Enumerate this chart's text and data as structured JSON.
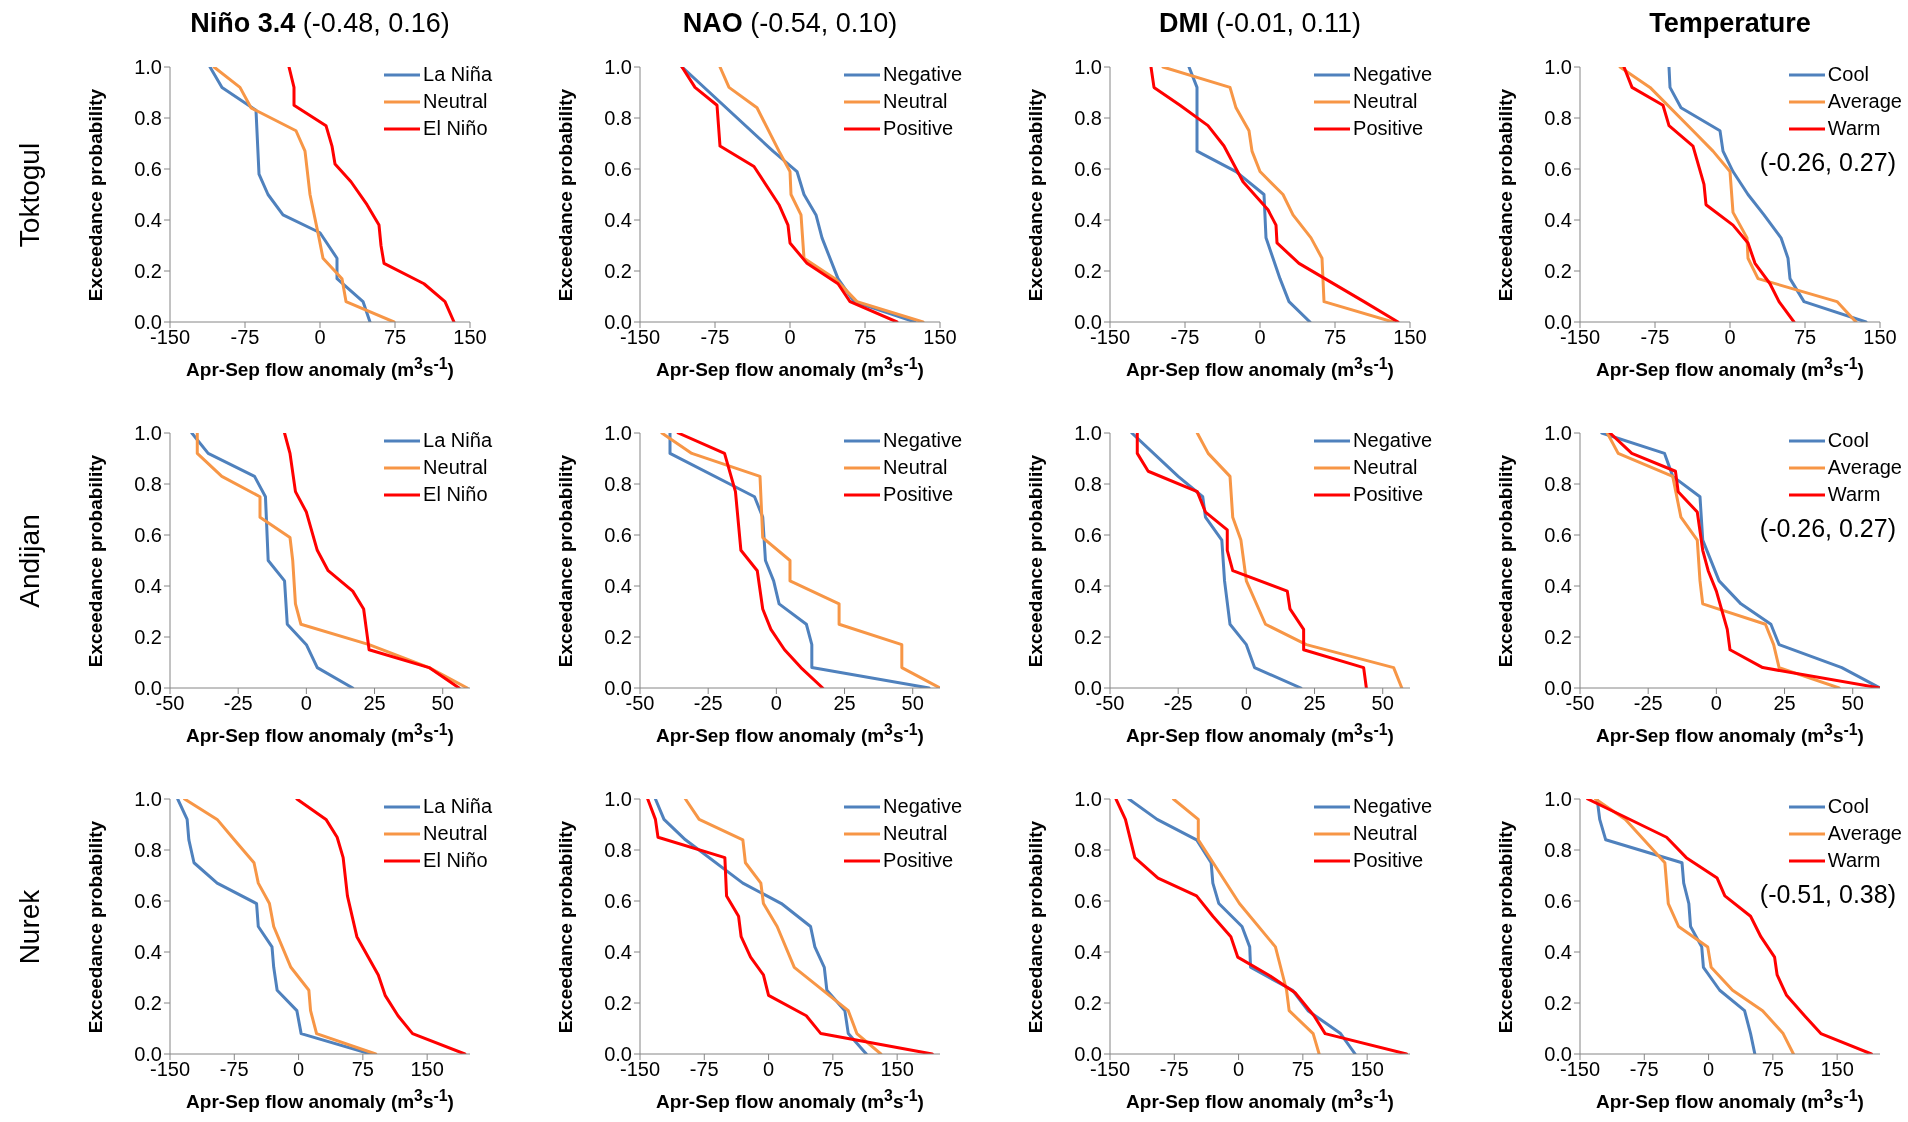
{
  "chart_data": [
    {
      "type": "line",
      "title": "Niño 3.4",
      "subtitle": "(-0.48, 0.16)",
      "xlabel": "Apr-Sep flow anomaly (m$^{3}$s$^{-1}$)",
      "ylabel": "Exceedance probability",
      "annotations": [
        "Toktogul"
      ],
      "xlim": [
        -150,
        150
      ],
      "xticks": [
        -150,
        -75,
        0,
        75,
        150
      ],
      "ylim": [
        0,
        1
      ],
      "yticks": [
        {
          "value": 0,
          "label": "0.0"
        },
        {
          "value": 0.2,
          "label": "0.2"
        },
        {
          "value": 0.4,
          "label": "0.4"
        },
        {
          "value": 0.6,
          "label": "0.6"
        },
        {
          "value": 0.8,
          "label": "0.8"
        },
        {
          "value": 1,
          "label": "1.0"
        }
      ],
      "legend": "top right",
      "marker": "none",
      "line_style": "solid",
      "series": [
        {
          "name": "La Niña",
          "color": "#4f81bd",
          "x": [
            -110,
            -98,
            -64,
            -61,
            -52,
            -37,
            0,
            17,
            17,
            43,
            50
          ],
          "values": [
            1,
            0.92,
            0.83,
            0.58,
            0.5,
            0.42,
            0.35,
            0.25,
            0.17,
            0.08,
            0
          ]
        },
        {
          "name": "Neutral",
          "color": "#f79646",
          "x": [
            -106,
            -80,
            -69,
            -24,
            -15,
            -10,
            -1,
            3,
            22,
            26,
            74
          ],
          "values": [
            1,
            0.92,
            0.84,
            0.75,
            0.67,
            0.5,
            0.33,
            0.25,
            0.17,
            0.08,
            0
          ]
        },
        {
          "name": "El Niño",
          "color": "#ff0000",
          "x": [
            -31,
            -26,
            -26,
            6,
            12,
            15,
            31,
            47,
            59,
            61,
            64,
            104,
            125,
            134
          ],
          "values": [
            1,
            0.92,
            0.85,
            0.77,
            0.69,
            0.62,
            0.55,
            0.46,
            0.38,
            0.3,
            0.23,
            0.15,
            0.08,
            0
          ]
        }
      ]
    },
    {
      "type": "line",
      "title": "NAO",
      "subtitle": "(-0.54, 0.10)",
      "xlabel": "Apr-Sep flow anomaly (m$^{3}$s$^{-1}$)",
      "ylabel": "Exceedance probability",
      "xlim": [
        -150,
        150
      ],
      "xticks": [
        -150,
        -75,
        0,
        75,
        150
      ],
      "ylim": [
        0,
        1
      ],
      "yticks": [
        {
          "value": 0,
          "label": "0.0"
        },
        {
          "value": 0.2,
          "label": "0.2"
        },
        {
          "value": 0.4,
          "label": "0.4"
        },
        {
          "value": 0.6,
          "label": "0.6"
        },
        {
          "value": 0.8,
          "label": "0.8"
        },
        {
          "value": 1,
          "label": "1.0"
        }
      ],
      "legend": "top right",
      "marker": "none",
      "line_style": "solid",
      "series": [
        {
          "name": "Negative",
          "color": "#4f81bd",
          "x": [
            -108,
            -17,
            7,
            14,
            26,
            32,
            48,
            64,
            125
          ],
          "values": [
            1,
            0.67,
            0.59,
            0.5,
            0.42,
            0.33,
            0.17,
            0.08,
            0
          ]
        },
        {
          "name": "Neutral",
          "color": "#f79646",
          "x": [
            -70,
            -61,
            -33,
            -11,
            0,
            1,
            11,
            14,
            45,
            67,
            133
          ],
          "values": [
            1,
            0.92,
            0.84,
            0.67,
            0.59,
            0.5,
            0.42,
            0.25,
            0.17,
            0.08,
            0
          ]
        },
        {
          "name": "Positive",
          "color": "#ff0000",
          "x": [
            -108,
            -95,
            -73,
            -70,
            -36,
            -11,
            -2,
            0,
            17,
            48,
            60,
            107
          ],
          "values": [
            1,
            0.92,
            0.85,
            0.69,
            0.61,
            0.46,
            0.38,
            0.31,
            0.23,
            0.15,
            0.08,
            0
          ]
        }
      ]
    },
    {
      "type": "line",
      "title": "DMI",
      "subtitle": "(-0.01, 0.11)",
      "xlabel": "Apr-Sep flow anomaly (m$^{3}$s$^{-1}$)",
      "ylabel": "Exceedance probability",
      "xlim": [
        -150,
        150
      ],
      "xticks": [
        -150,
        -75,
        0,
        75,
        150
      ],
      "ylim": [
        0,
        1
      ],
      "yticks": [
        {
          "value": 0,
          "label": "0.0"
        },
        {
          "value": 0.2,
          "label": "0.2"
        },
        {
          "value": 0.4,
          "label": "0.4"
        },
        {
          "value": 0.6,
          "label": "0.6"
        },
        {
          "value": 0.8,
          "label": "0.8"
        },
        {
          "value": 1,
          "label": "1.0"
        }
      ],
      "legend": "top right",
      "marker": "none",
      "line_style": "solid",
      "series": [
        {
          "name": "Negative",
          "color": "#4f81bd",
          "x": [
            -71,
            -63,
            -63,
            -24,
            4,
            6,
            13,
            20,
            29,
            50
          ],
          "values": [
            1,
            0.92,
            0.67,
            0.59,
            0.5,
            0.33,
            0.25,
            0.17,
            0.08,
            0
          ]
        },
        {
          "name": "Neutral",
          "color": "#f79646",
          "x": [
            -97,
            -30,
            -24,
            -11,
            -8,
            0,
            23,
            33,
            51,
            62,
            64,
            133
          ],
          "values": [
            1,
            0.92,
            0.84,
            0.75,
            0.67,
            0.59,
            0.5,
            0.42,
            0.33,
            0.25,
            0.08,
            0
          ]
        },
        {
          "name": "Positive",
          "color": "#ff0000",
          "x": [
            -109,
            -106,
            -80,
            -52,
            -36,
            -17,
            8,
            16,
            17,
            39,
            104,
            138
          ],
          "values": [
            1,
            0.92,
            0.85,
            0.77,
            0.69,
            0.55,
            0.44,
            0.38,
            0.31,
            0.23,
            0.08,
            0
          ]
        }
      ]
    },
    {
      "type": "line",
      "title": "Temperature",
      "xlabel": "Apr-Sep flow anomaly (m$^{3}$s$^{-1}$)",
      "ylabel": "Exceedance probability",
      "annotations": [
        "(-0.26, 0.27)"
      ],
      "xlim": [
        -150,
        150
      ],
      "xticks": [
        -150,
        -75,
        0,
        75,
        150
      ],
      "ylim": [
        0,
        1
      ],
      "yticks": [
        {
          "value": 0,
          "label": "0.0"
        },
        {
          "value": 0.2,
          "label": "0.2"
        },
        {
          "value": 0.4,
          "label": "0.4"
        },
        {
          "value": 0.6,
          "label": "0.6"
        },
        {
          "value": 0.8,
          "label": "0.8"
        },
        {
          "value": 1,
          "label": "1.0"
        }
      ],
      "legend": "top right",
      "marker": "none",
      "line_style": "solid",
      "series": [
        {
          "name": "Cool",
          "color": "#4f81bd",
          "x": [
            -61,
            -60,
            -49,
            -10,
            -7,
            3,
            18,
            34,
            51,
            58,
            60,
            74,
            136
          ],
          "values": [
            1,
            0.92,
            0.84,
            0.75,
            0.67,
            0.59,
            0.5,
            0.42,
            0.33,
            0.25,
            0.17,
            0.08,
            0
          ]
        },
        {
          "name": "Average",
          "color": "#f79646",
          "x": [
            -110,
            -80,
            -37,
            -17,
            0,
            3,
            17,
            18,
            28,
            107,
            126
          ],
          "values": [
            1,
            0.92,
            0.75,
            0.67,
            0.59,
            0.43,
            0.33,
            0.25,
            0.17,
            0.08,
            0
          ]
        },
        {
          "name": "Warm",
          "color": "#ff0000",
          "x": [
            -106,
            -98,
            -67,
            -61,
            -37,
            -26,
            -24,
            3,
            18,
            25,
            40,
            49,
            64
          ],
          "values": [
            1,
            0.92,
            0.85,
            0.77,
            0.69,
            0.54,
            0.46,
            0.38,
            0.31,
            0.23,
            0.15,
            0.08,
            0
          ]
        }
      ]
    },
    {
      "type": "line",
      "xlabel": "Apr-Sep flow anomaly (m$^{3}$s$^{-1}$)",
      "ylabel": "Exceedance probability",
      "annotations": [
        "Andijan"
      ],
      "xlim": [
        -50,
        60
      ],
      "xticks": [
        -50,
        -25,
        0,
        25,
        50
      ],
      "ylim": [
        0,
        1
      ],
      "yticks": [
        {
          "value": 0,
          "label": "0.0"
        },
        {
          "value": 0.2,
          "label": "0.2"
        },
        {
          "value": 0.4,
          "label": "0.4"
        },
        {
          "value": 0.6,
          "label": "0.6"
        },
        {
          "value": 0.8,
          "label": "0.8"
        },
        {
          "value": 1,
          "label": "1.0"
        }
      ],
      "legend": "top right",
      "marker": "none",
      "line_style": "solid",
      "series": [
        {
          "name": "La Niña",
          "color": "#4f81bd",
          "x": [
            -42,
            -36,
            -19,
            -15,
            -14,
            -8,
            -7,
            0,
            4,
            17
          ],
          "values": [
            1,
            0.92,
            0.83,
            0.75,
            0.5,
            0.42,
            0.25,
            0.17,
            0.08,
            0
          ]
        },
        {
          "name": "Neutral",
          "color": "#f79646",
          "x": [
            -40,
            -40,
            -31,
            -17,
            -17,
            -6,
            -5,
            -4,
            -2,
            23,
            45,
            59
          ],
          "values": [
            1,
            0.92,
            0.83,
            0.75,
            0.67,
            0.59,
            0.5,
            0.33,
            0.25,
            0.17,
            0.08,
            0
          ]
        },
        {
          "name": "El Niño",
          "color": "#ff0000",
          "x": [
            -8,
            -6,
            -4,
            0,
            4,
            8,
            17,
            21,
            22,
            23,
            45,
            56
          ],
          "values": [
            1,
            0.92,
            0.77,
            0.69,
            0.54,
            0.46,
            0.38,
            0.31,
            0.23,
            0.15,
            0.08,
            0
          ]
        }
      ]
    },
    {
      "type": "line",
      "xlabel": "Apr-Sep flow anomaly (m$^{3}$s$^{-1}$)",
      "ylabel": "Exceedance probability",
      "xlim": [
        -50,
        60
      ],
      "xticks": [
        -50,
        -25,
        0,
        25,
        50
      ],
      "ylim": [
        0,
        1
      ],
      "yticks": [
        {
          "value": 0,
          "label": "0.0"
        },
        {
          "value": 0.2,
          "label": "0.2"
        },
        {
          "value": 0.4,
          "label": "0.4"
        },
        {
          "value": 0.6,
          "label": "0.6"
        },
        {
          "value": 0.8,
          "label": "0.8"
        },
        {
          "value": 1,
          "label": "1.0"
        }
      ],
      "legend": "top right",
      "marker": "none",
      "line_style": "solid",
      "series": [
        {
          "name": "Negative",
          "color": "#4f81bd",
          "x": [
            -39,
            -39,
            -8,
            -5,
            -4,
            -1,
            1,
            11,
            13,
            13,
            56
          ],
          "values": [
            1,
            0.92,
            0.75,
            0.67,
            0.5,
            0.42,
            0.33,
            0.25,
            0.17,
            0.08,
            0
          ]
        },
        {
          "name": "Neutral",
          "color": "#f79646",
          "x": [
            -42,
            -31,
            -6,
            -5,
            5,
            5,
            23,
            23,
            46,
            46,
            60
          ],
          "values": [
            1,
            0.92,
            0.83,
            0.59,
            0.5,
            0.42,
            0.33,
            0.25,
            0.17,
            0.08,
            0
          ]
        },
        {
          "name": "Positive",
          "color": "#ff0000",
          "x": [
            -36,
            -19,
            -15,
            -13,
            -7,
            -5,
            -2,
            3,
            9,
            17
          ],
          "values": [
            1,
            0.92,
            0.77,
            0.54,
            0.46,
            0.31,
            0.23,
            0.15,
            0.08,
            0
          ]
        }
      ]
    },
    {
      "type": "line",
      "xlabel": "Apr-Sep flow anomaly (m$^{3}$s$^{-1}$)",
      "ylabel": "Exceedance probability",
      "xlim": [
        -50,
        60
      ],
      "xticks": [
        -50,
        -25,
        0,
        25,
        50
      ],
      "ylim": [
        0,
        1
      ],
      "yticks": [
        {
          "value": 0,
          "label": "0.0"
        },
        {
          "value": 0.2,
          "label": "0.2"
        },
        {
          "value": 0.4,
          "label": "0.4"
        },
        {
          "value": 0.6,
          "label": "0.6"
        },
        {
          "value": 0.8,
          "label": "0.8"
        },
        {
          "value": 1,
          "label": "1.0"
        }
      ],
      "legend": "top right",
      "marker": "none",
      "line_style": "solid",
      "series": [
        {
          "name": "Negative",
          "color": "#4f81bd",
          "x": [
            -42,
            -25,
            -16,
            -15,
            -9,
            -8,
            -6,
            0,
            3,
            20
          ],
          "values": [
            1,
            0.83,
            0.75,
            0.67,
            0.58,
            0.42,
            0.25,
            0.17,
            0.08,
            0
          ]
        },
        {
          "name": "Neutral",
          "color": "#f79646",
          "x": [
            -18,
            -14,
            -6,
            -5,
            -2,
            -1,
            0,
            7,
            22,
            54,
            57
          ],
          "values": [
            1,
            0.92,
            0.83,
            0.67,
            0.58,
            0.5,
            0.42,
            0.25,
            0.17,
            0.08,
            0
          ]
        },
        {
          "name": "Positive",
          "color": "#ff0000",
          "x": [
            -40,
            -40,
            -36,
            -18,
            -15,
            -7,
            -7,
            -5,
            15,
            16,
            21,
            21,
            43,
            44
          ],
          "values": [
            1,
            0.92,
            0.85,
            0.77,
            0.69,
            0.62,
            0.54,
            0.46,
            0.38,
            0.31,
            0.23,
            0.15,
            0.08,
            0
          ]
        }
      ]
    },
    {
      "type": "line",
      "xlabel": "Apr-Sep flow anomaly (m$^{3}$s$^{-1}$)",
      "ylabel": "Exceedance probability",
      "annotations": [
        "(-0.26, 0.27)"
      ],
      "xlim": [
        -50,
        60
      ],
      "xticks": [
        -50,
        -25,
        0,
        25,
        50
      ],
      "ylim": [
        0,
        1
      ],
      "yticks": [
        {
          "value": 0,
          "label": "0.0"
        },
        {
          "value": 0.2,
          "label": "0.2"
        },
        {
          "value": 0.4,
          "label": "0.4"
        },
        {
          "value": 0.6,
          "label": "0.6"
        },
        {
          "value": 0.8,
          "label": "0.8"
        },
        {
          "value": 1,
          "label": "1.0"
        }
      ],
      "legend": "top right",
      "marker": "none",
      "line_style": "solid",
      "series": [
        {
          "name": "Cool",
          "color": "#4f81bd",
          "x": [
            -42,
            -19,
            -16,
            -6,
            -5,
            1,
            9,
            20,
            23,
            46,
            60
          ],
          "values": [
            1,
            0.92,
            0.83,
            0.75,
            0.58,
            0.42,
            0.33,
            0.25,
            0.17,
            0.08,
            0
          ]
        },
        {
          "name": "Average",
          "color": "#f79646",
          "x": [
            -40,
            -36,
            -16,
            -13,
            -7,
            -6,
            -5,
            18,
            21,
            23,
            45
          ],
          "values": [
            1,
            0.92,
            0.83,
            0.67,
            0.58,
            0.42,
            0.33,
            0.25,
            0.17,
            0.08,
            0
          ]
        },
        {
          "name": "Warm",
          "color": "#ff0000",
          "x": [
            -39,
            -31,
            -15,
            -14,
            -7,
            -5,
            -3,
            0,
            4,
            5,
            17,
            60
          ],
          "values": [
            1,
            0.92,
            0.85,
            0.77,
            0.69,
            0.54,
            0.46,
            0.38,
            0.23,
            0.15,
            0.08,
            0
          ]
        }
      ]
    },
    {
      "type": "line",
      "xlabel": "Apr-Sep flow anomaly (m$^{3}$s$^{-1}$)",
      "ylabel": "Exceedance probability",
      "annotations": [
        "Nurek"
      ],
      "xlim": [
        -150,
        200
      ],
      "xticks": [
        -150,
        -75,
        0,
        75,
        150
      ],
      "ylim": [
        0,
        1
      ],
      "yticks": [
        {
          "value": 0,
          "label": "0.0"
        },
        {
          "value": 0.2,
          "label": "0.2"
        },
        {
          "value": 0.4,
          "label": "0.4"
        },
        {
          "value": 0.6,
          "label": "0.6"
        },
        {
          "value": 0.8,
          "label": "0.8"
        },
        {
          "value": 1,
          "label": "1.0"
        }
      ],
      "legend": "top right",
      "marker": "none",
      "line_style": "solid",
      "series": [
        {
          "name": "La Niña",
          "color": "#4f81bd",
          "x": [
            -141,
            -130,
            -128,
            -122,
            -95,
            -49,
            -47,
            -31,
            -29,
            -25,
            -2,
            3,
            84
          ],
          "values": [
            1,
            0.92,
            0.84,
            0.75,
            0.67,
            0.59,
            0.5,
            0.42,
            0.34,
            0.25,
            0.17,
            0.08,
            0
          ]
        },
        {
          "name": "Neutral",
          "color": "#f79646",
          "x": [
            -133,
            -95,
            -75,
            -52,
            -47,
            -34,
            -29,
            -9,
            12,
            14,
            21,
            90
          ],
          "values": [
            1,
            0.92,
            0.84,
            0.75,
            0.67,
            0.59,
            0.5,
            0.34,
            0.25,
            0.17,
            0.08,
            0
          ]
        },
        {
          "name": "El Niño",
          "color": "#ff0000",
          "x": [
            -2,
            32,
            45,
            52,
            57,
            68,
            93,
            101,
            116,
            133,
            194
          ],
          "values": [
            1,
            0.92,
            0.85,
            0.77,
            0.62,
            0.46,
            0.31,
            0.23,
            0.15,
            0.08,
            0
          ]
        }
      ]
    },
    {
      "type": "line",
      "xlabel": "Apr-Sep flow anomaly (m$^{3}$s$^{-1}$)",
      "ylabel": "Exceedance probability",
      "xlim": [
        -150,
        200
      ],
      "xticks": [
        -150,
        -75,
        0,
        75,
        150
      ],
      "ylim": [
        0,
        1
      ],
      "yticks": [
        {
          "value": 0,
          "label": "0.0"
        },
        {
          "value": 0.2,
          "label": "0.2"
        },
        {
          "value": 0.4,
          "label": "0.4"
        },
        {
          "value": 0.6,
          "label": "0.6"
        },
        {
          "value": 0.8,
          "label": "0.8"
        },
        {
          "value": 1,
          "label": "1.0"
        }
      ],
      "legend": "top right",
      "marker": "none",
      "line_style": "solid",
      "series": [
        {
          "name": "Negative",
          "color": "#4f81bd",
          "x": [
            -132,
            -122,
            -97,
            -30,
            15,
            49,
            54,
            65,
            68,
            89,
            93,
            114
          ],
          "values": [
            1,
            0.92,
            0.84,
            0.67,
            0.59,
            0.5,
            0.42,
            0.34,
            0.25,
            0.17,
            0.08,
            0
          ]
        },
        {
          "name": "Neutral",
          "color": "#f79646",
          "x": [
            -97,
            -81,
            -30,
            -27,
            -9,
            -6,
            10,
            30,
            93,
            103,
            131
          ],
          "values": [
            1,
            0.92,
            0.84,
            0.75,
            0.67,
            0.59,
            0.5,
            0.34,
            0.17,
            0.08,
            0
          ]
        },
        {
          "name": "Positive",
          "color": "#ff0000",
          "x": [
            -141,
            -132,
            -129,
            -51,
            -49,
            -35,
            -32,
            -21,
            -6,
            0,
            44,
            61,
            191
          ],
          "values": [
            1,
            0.92,
            0.85,
            0.77,
            0.62,
            0.54,
            0.46,
            0.38,
            0.31,
            0.23,
            0.15,
            0.08,
            0
          ]
        }
      ]
    },
    {
      "type": "line",
      "xlabel": "Apr-Sep flow anomaly (m$^{3}$s$^{-1}$)",
      "ylabel": "Exceedance probability",
      "xlim": [
        -150,
        200
      ],
      "xticks": [
        -150,
        -75,
        0,
        75,
        150
      ],
      "ylim": [
        0,
        1
      ],
      "yticks": [
        {
          "value": 0,
          "label": "0.0"
        },
        {
          "value": 0.2,
          "label": "0.2"
        },
        {
          "value": 0.4,
          "label": "0.4"
        },
        {
          "value": 0.6,
          "label": "0.6"
        },
        {
          "value": 0.8,
          "label": "0.8"
        },
        {
          "value": 1,
          "label": "1.0"
        }
      ],
      "legend": "top right",
      "marker": "none",
      "line_style": "solid",
      "series": [
        {
          "name": "Negative",
          "color": "#4f81bd",
          "x": [
            -128,
            -95,
            -49,
            -32,
            -30,
            -23,
            4,
            13,
            14,
            63,
            81,
            119,
            136
          ],
          "values": [
            1,
            0.92,
            0.84,
            0.75,
            0.67,
            0.59,
            0.5,
            0.42,
            0.34,
            0.25,
            0.17,
            0.08,
            0
          ]
        },
        {
          "name": "Neutral",
          "color": "#f79646",
          "x": [
            -76,
            -47,
            -47,
            1,
            43,
            56,
            59,
            87,
            94
          ],
          "values": [
            1,
            0.92,
            0.84,
            0.59,
            0.42,
            0.25,
            0.17,
            0.08,
            0
          ]
        },
        {
          "name": "Positive",
          "color": "#ff0000",
          "x": [
            -143,
            -132,
            -121,
            -94,
            -49,
            -30,
            -9,
            -1,
            35,
            66,
            88,
            101,
            196
          ],
          "values": [
            1,
            0.92,
            0.77,
            0.69,
            0.62,
            0.54,
            0.46,
            0.38,
            0.31,
            0.24,
            0.15,
            0.08,
            0
          ]
        }
      ]
    },
    {
      "type": "line",
      "xlabel": "Apr-Sep flow anomaly (m$^{3}$s$^{-1}$)",
      "ylabel": "Exceedance probability",
      "annotations": [
        "(-0.51, 0.38)"
      ],
      "xlim": [
        -150,
        200
      ],
      "xticks": [
        -150,
        -75,
        0,
        75,
        150
      ],
      "ylim": [
        0,
        1
      ],
      "yticks": [
        {
          "value": 0,
          "label": "0.0"
        },
        {
          "value": 0.2,
          "label": "0.2"
        },
        {
          "value": 0.4,
          "label": "0.4"
        },
        {
          "value": 0.6,
          "label": "0.6"
        },
        {
          "value": 0.8,
          "label": "0.8"
        },
        {
          "value": 1,
          "label": "1.0"
        }
      ],
      "legend": "top right",
      "marker": "none",
      "line_style": "solid",
      "series": [
        {
          "name": "Cool",
          "color": "#4f81bd",
          "x": [
            -130,
            -127,
            -120,
            -31,
            -29,
            -23,
            -21,
            -8,
            -6,
            13,
            42,
            49,
            54
          ],
          "values": [
            1,
            0.92,
            0.84,
            0.75,
            0.67,
            0.59,
            0.5,
            0.42,
            0.34,
            0.25,
            0.17,
            0.08,
            0
          ]
        },
        {
          "name": "Average",
          "color": "#f79646",
          "x": [
            -132,
            -97,
            -51,
            -47,
            -35,
            -1,
            3,
            28,
            63,
            87,
            99
          ],
          "values": [
            1,
            0.92,
            0.75,
            0.59,
            0.5,
            0.42,
            0.34,
            0.25,
            0.17,
            0.08,
            0
          ]
        },
        {
          "name": "Warm",
          "color": "#ff0000",
          "x": [
            -141,
            -49,
            -26,
            10,
            19,
            49,
            61,
            77,
            80,
            91,
            112,
            131,
            190
          ],
          "values": [
            1,
            0.85,
            0.77,
            0.69,
            0.62,
            0.54,
            0.46,
            0.38,
            0.31,
            0.23,
            0.15,
            0.08,
            0
          ]
        }
      ]
    }
  ]
}
